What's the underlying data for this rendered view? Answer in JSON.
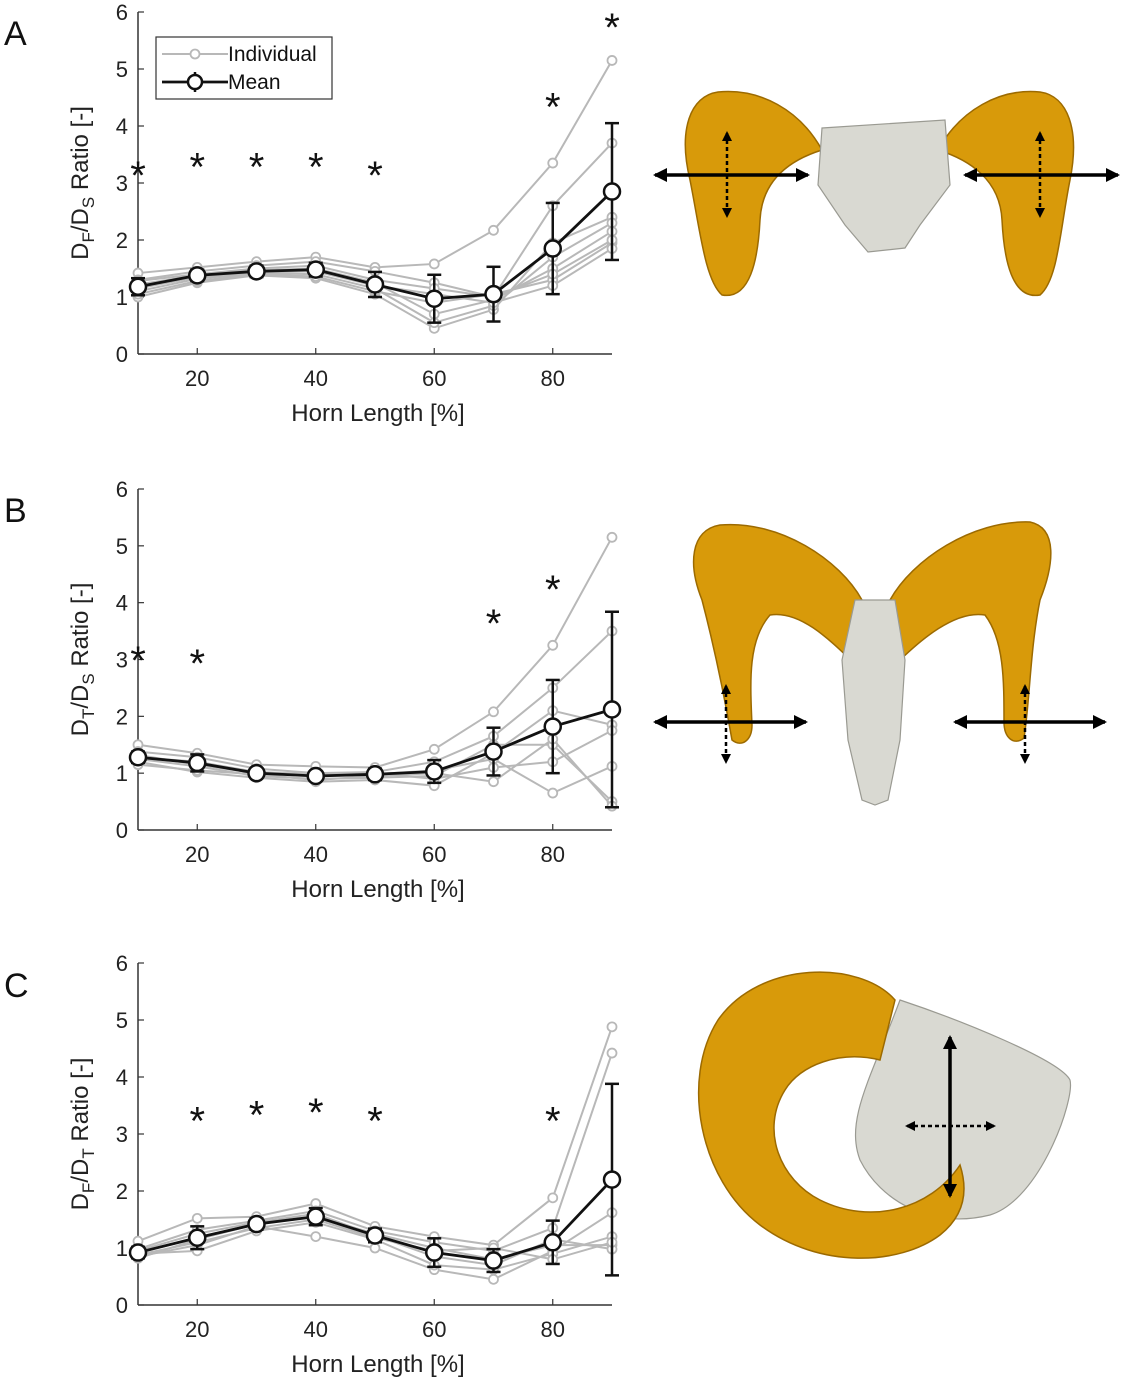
{
  "colors": {
    "individual": "#b8b8b8",
    "mean": "#111111",
    "horn": "#d89a0a",
    "horn_dark": "#9c6a00",
    "skull": "#d9d9d2"
  },
  "legend": {
    "individual": "Individual",
    "mean": "Mean"
  },
  "chart_data": [
    {
      "panel": "A",
      "type": "line",
      "ylabel": {
        "p1": "D",
        "s1": "F",
        "p2": "/D",
        "s2": "S",
        "p3": " Ratio [-]"
      },
      "xlabel": "Horn Length [%]",
      "xlim": [
        10,
        90
      ],
      "ylim": [
        0,
        6
      ],
      "xticks": [
        20,
        40,
        60,
        80
      ],
      "yticks": [
        0,
        1,
        2,
        3,
        4,
        5,
        6
      ],
      "x": [
        10,
        20,
        30,
        40,
        50,
        60,
        70,
        80,
        90
      ],
      "mean": [
        1.18,
        1.38,
        1.45,
        1.48,
        1.22,
        0.97,
        1.05,
        1.85,
        2.85
      ],
      "err": [
        0.15,
        0.1,
        0.1,
        0.12,
        0.22,
        0.42,
        0.48,
        0.8,
        1.2
      ],
      "individuals": [
        [
          1.42,
          1.52,
          1.62,
          1.7,
          1.52,
          1.58,
          2.17,
          3.35,
          5.15
        ],
        [
          1.3,
          1.45,
          1.55,
          1.62,
          1.45,
          1.25,
          1.0,
          2.6,
          3.7
        ],
        [
          1.0,
          1.25,
          1.38,
          1.33,
          1.05,
          0.45,
          0.78,
          1.95,
          2.4
        ],
        [
          1.1,
          1.32,
          1.42,
          1.4,
          1.15,
          0.55,
          0.85,
          1.7,
          2.3
        ],
        [
          1.22,
          1.38,
          1.47,
          1.5,
          1.25,
          0.7,
          0.95,
          1.5,
          2.15
        ],
        [
          1.05,
          1.28,
          1.4,
          1.36,
          1.1,
          0.9,
          1.05,
          1.3,
          1.95
        ],
        [
          1.15,
          1.35,
          1.44,
          1.45,
          1.2,
          1.05,
          0.9,
          1.2,
          1.85
        ],
        [
          1.28,
          1.4,
          1.5,
          1.55,
          1.3,
          1.15,
          1.0,
          1.4,
          2.0
        ]
      ],
      "stars": [
        {
          "x": 10,
          "y": 3.35
        },
        {
          "x": 20,
          "y": 3.5
        },
        {
          "x": 30,
          "y": 3.5
        },
        {
          "x": 40,
          "y": 3.5
        },
        {
          "x": 50,
          "y": 3.35
        },
        {
          "x": 80,
          "y": 4.55
        },
        {
          "x": 90,
          "y": 5.95
        }
      ]
    },
    {
      "panel": "B",
      "type": "line",
      "ylabel": {
        "p1": "D",
        "s1": "T",
        "p2": "/D",
        "s2": "S",
        "p3": " Ratio [-]"
      },
      "xlabel": "Horn Length [%]",
      "xlim": [
        10,
        90
      ],
      "ylim": [
        0,
        6
      ],
      "xticks": [
        20,
        40,
        60,
        80
      ],
      "yticks": [
        0,
        1,
        2,
        3,
        4,
        5,
        6
      ],
      "x": [
        10,
        20,
        30,
        40,
        50,
        60,
        70,
        80,
        90
      ],
      "mean": [
        1.28,
        1.18,
        1.0,
        0.95,
        0.98,
        1.03,
        1.38,
        1.82,
        2.12
      ],
      "err": [
        0.1,
        0.15,
        0.08,
        0.08,
        0.1,
        0.2,
        0.42,
        0.82,
        1.72
      ],
      "individuals": [
        [
          1.5,
          1.35,
          1.15,
          1.12,
          1.1,
          1.42,
          2.08,
          3.25,
          5.15
        ],
        [
          1.38,
          1.28,
          1.08,
          1.0,
          1.02,
          1.2,
          1.65,
          2.5,
          3.5
        ],
        [
          1.2,
          1.02,
          0.92,
          0.85,
          0.88,
          0.78,
          1.35,
          2.1,
          1.85
        ],
        [
          1.25,
          1.12,
          0.95,
          0.9,
          0.92,
          0.95,
          1.5,
          1.5,
          0.5
        ],
        [
          1.32,
          1.15,
          1.0,
          0.95,
          0.98,
          1.05,
          1.25,
          0.65,
          1.12
        ],
        [
          1.15,
          1.05,
          0.98,
          0.88,
          0.95,
          1.0,
          0.85,
          1.6,
          0.42
        ],
        [
          1.28,
          1.2,
          1.02,
          0.98,
          1.0,
          0.9,
          1.1,
          1.2,
          1.75
        ]
      ],
      "stars": [
        {
          "x": 10,
          "y": 3.2
        },
        {
          "x": 20,
          "y": 3.15
        },
        {
          "x": 70,
          "y": 3.85
        },
        {
          "x": 80,
          "y": 4.45
        }
      ]
    },
    {
      "panel": "C",
      "type": "line",
      "ylabel": {
        "p1": "D",
        "s1": "F",
        "p2": "/D",
        "s2": "T",
        "p3": " Ratio [-]"
      },
      "xlabel": "Horn Length [%]",
      "xlim": [
        10,
        90
      ],
      "ylim": [
        0,
        6
      ],
      "xticks": [
        20,
        40,
        60,
        80
      ],
      "yticks": [
        0,
        1,
        2,
        3,
        4,
        5,
        6
      ],
      "x": [
        10,
        20,
        30,
        40,
        50,
        60,
        70,
        80,
        90
      ],
      "mean": [
        0.92,
        1.18,
        1.42,
        1.55,
        1.22,
        0.92,
        0.78,
        1.1,
        2.2
      ],
      "err": [
        0.1,
        0.2,
        0.1,
        0.15,
        0.12,
        0.25,
        0.2,
        0.38,
        1.68
      ],
      "individuals": [
        [
          1.12,
          1.52,
          1.55,
          1.78,
          1.38,
          1.2,
          1.05,
          1.88,
          4.88
        ],
        [
          0.98,
          1.32,
          1.48,
          1.65,
          1.3,
          1.1,
          0.95,
          1.35,
          4.42
        ],
        [
          0.85,
          1.05,
          1.38,
          1.2,
          1.0,
          0.62,
          0.45,
          0.95,
          1.62
        ],
        [
          0.9,
          0.95,
          1.3,
          1.45,
          1.15,
          0.7,
          0.62,
          0.9,
          1.2
        ],
        [
          0.82,
          1.15,
          1.42,
          1.55,
          1.25,
          1.0,
          0.8,
          1.05,
          1.05
        ],
        [
          0.95,
          1.25,
          1.45,
          1.6,
          1.22,
          0.85,
          0.7,
          1.15,
          0.98
        ],
        [
          0.88,
          1.1,
          1.35,
          1.5,
          1.18,
          0.95,
          1.0,
          0.8,
          1.1
        ]
      ],
      "stars": [
        {
          "x": 20,
          "y": 3.45
        },
        {
          "x": 30,
          "y": 3.55
        },
        {
          "x": 40,
          "y": 3.6
        },
        {
          "x": 50,
          "y": 3.45
        },
        {
          "x": 80,
          "y": 3.45
        }
      ]
    }
  ]
}
